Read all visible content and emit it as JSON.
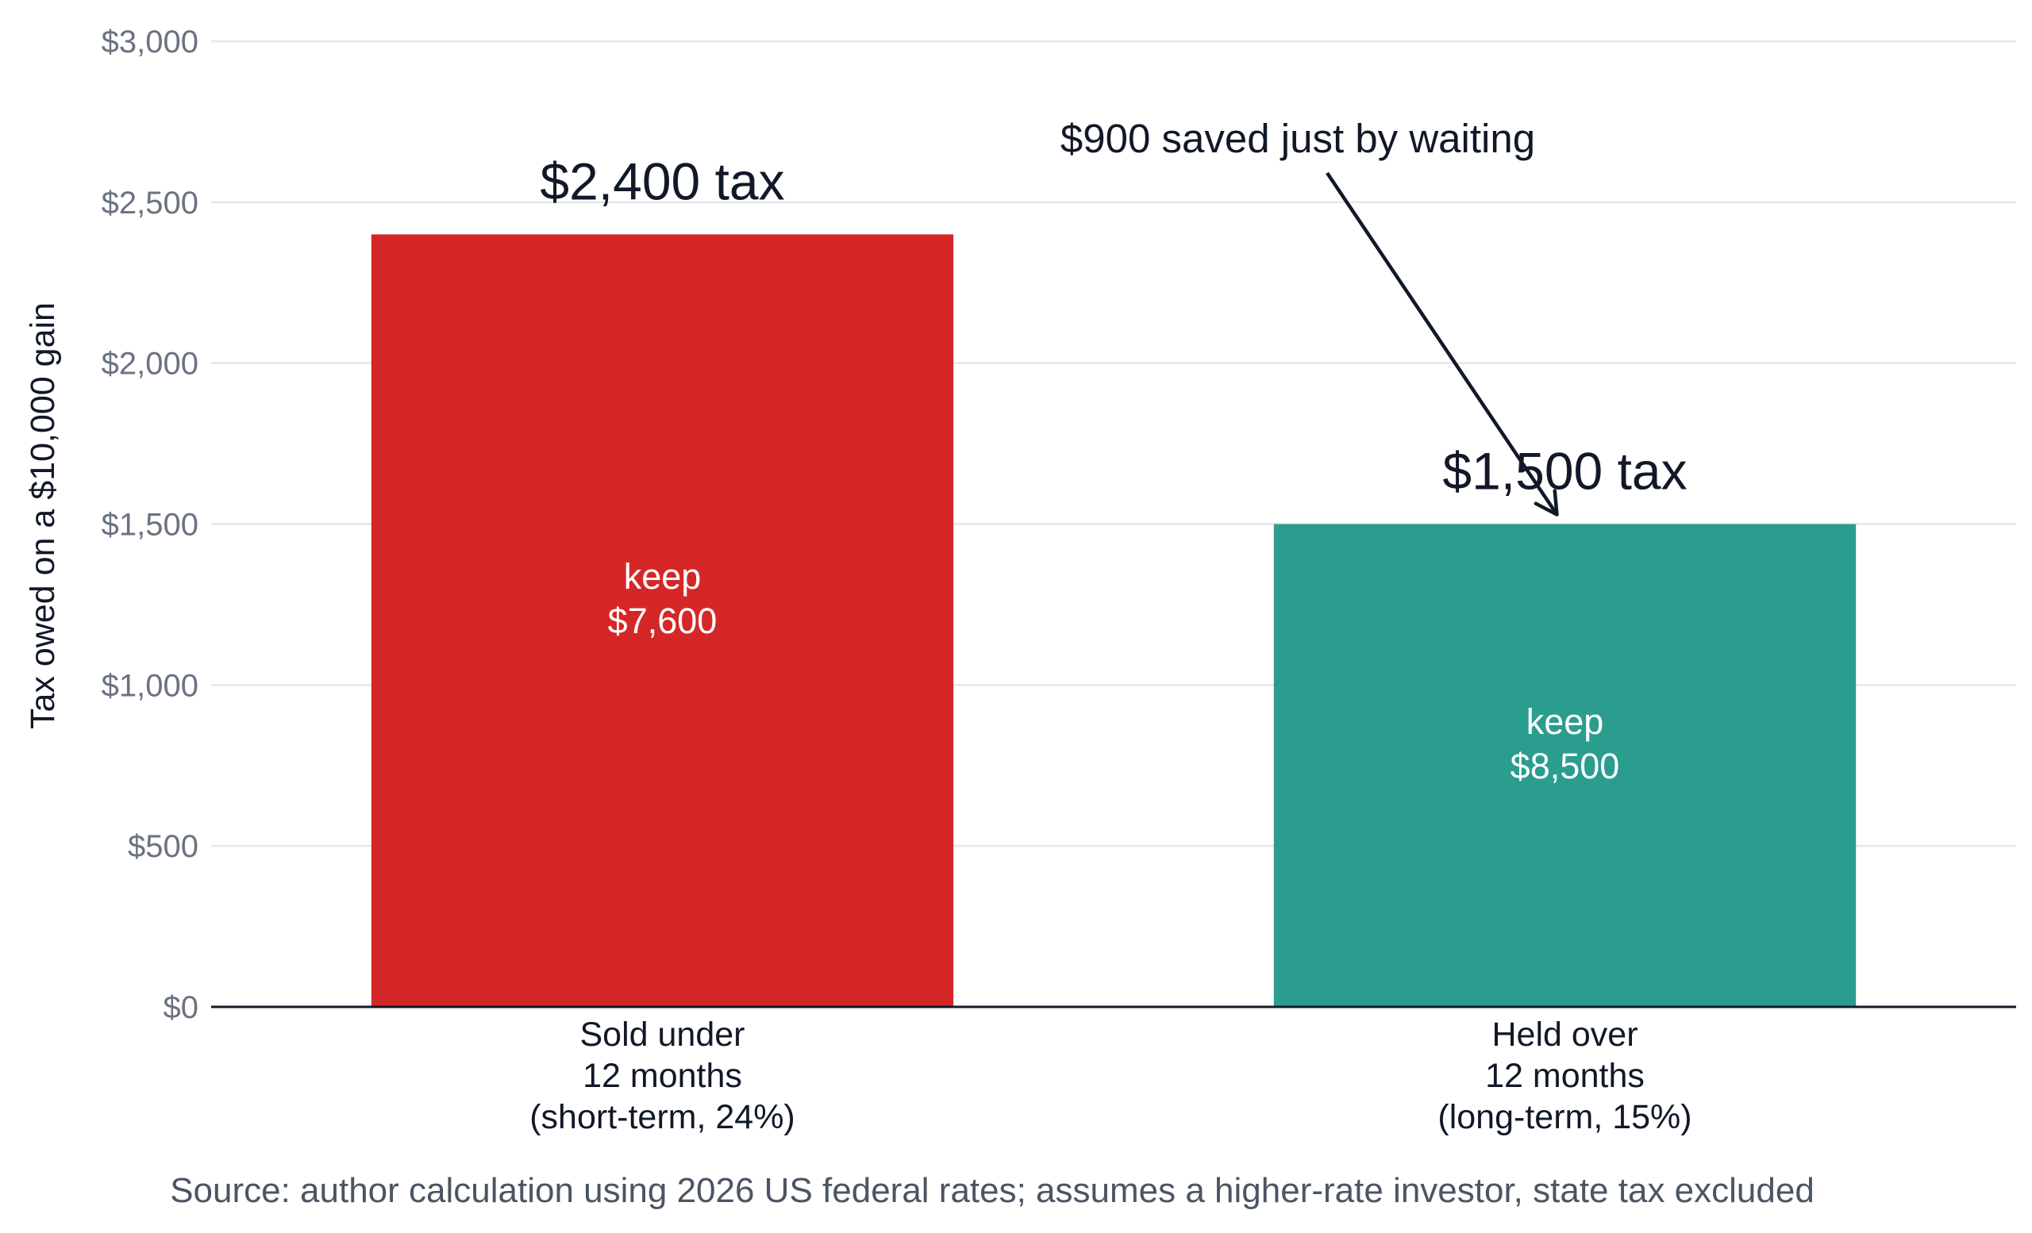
{
  "chart_data": {
    "type": "bar",
    "categories": [
      [
        "Sold under",
        "12 months",
        "(short-term, 24%)"
      ],
      [
        "Held over",
        "12 months",
        "(long-term, 15%)"
      ]
    ],
    "values": [
      2400,
      1500
    ],
    "bar_labels": [
      "$2,400 tax",
      "$1,500 tax"
    ],
    "inner_labels": [
      [
        "keep",
        "$7,600"
      ],
      [
        "keep",
        "$8,500"
      ]
    ],
    "colors": [
      "#d62728",
      "#2a9d8f"
    ],
    "ylabel": "Tax owed on a $10,000 gain",
    "xlabel": "",
    "ylim": [
      0,
      3000
    ],
    "y_ticks": [
      0,
      500,
      1000,
      1500,
      2000,
      2500,
      3000
    ],
    "y_tick_labels": [
      "$0",
      "$500",
      "$1,000",
      "$1,500",
      "$2,000",
      "$2,500",
      "$3,000"
    ],
    "grid": true,
    "annotation": {
      "text": "$900 saved just by waiting",
      "points_to_category": 1,
      "points_to_value": 1500
    },
    "source": "Source: author calculation using 2026 US federal rates; assumes a higher-rate investor, state tax excluded"
  }
}
